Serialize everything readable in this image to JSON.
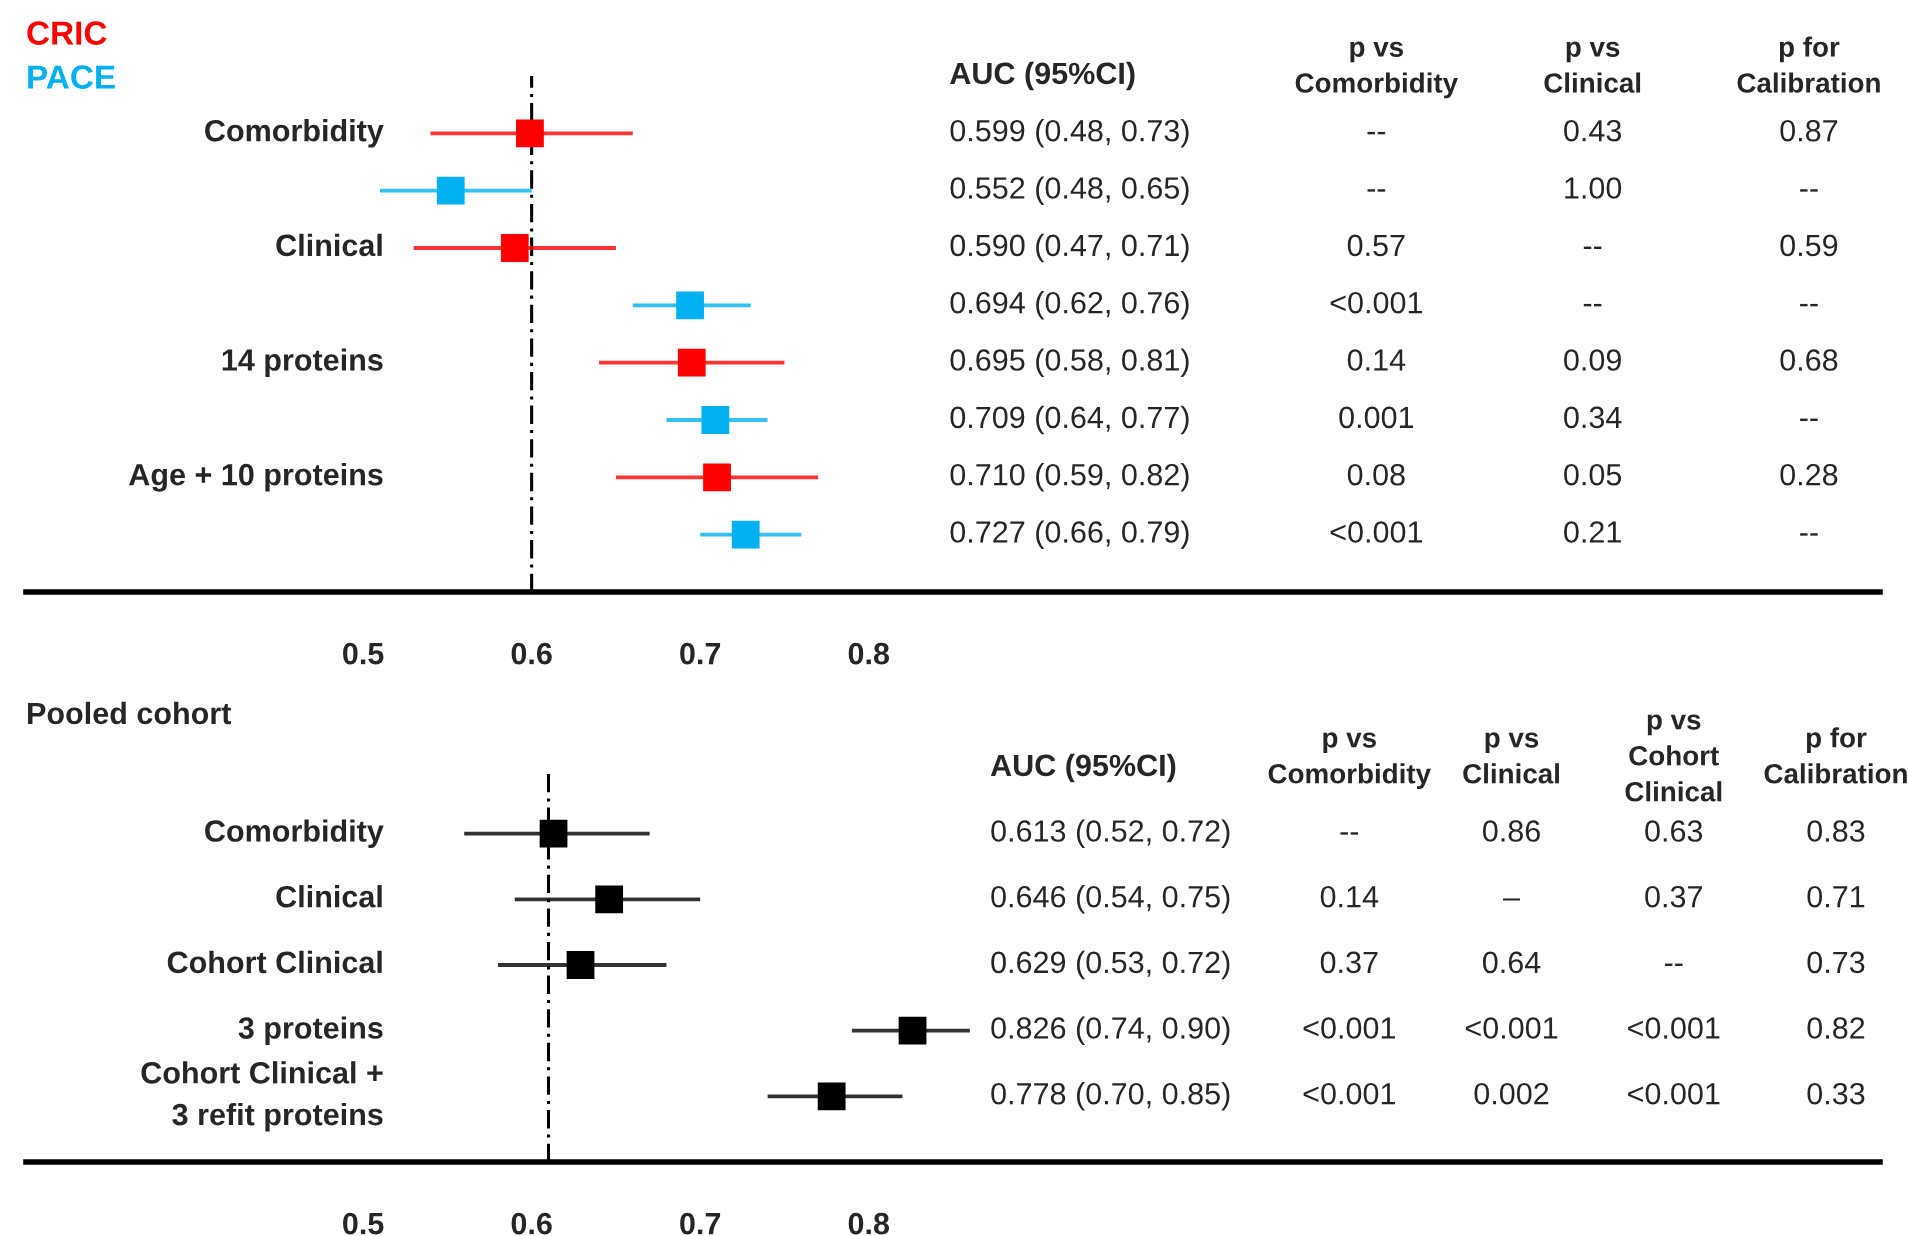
{
  "chart_data": [
    {
      "type": "scatter",
      "orientation": "horizontal",
      "legend": "top left",
      "marker": "square",
      "grid": false,
      "categories": [
        "Comorbidity",
        null,
        "Clinical",
        null,
        "14 proteins",
        null,
        "Age + 10 proteins",
        null
      ],
      "xlim": [
        0.3,
        1.4
      ],
      "xticks": [
        0.5,
        0.6,
        0.7,
        0.8
      ],
      "series": [
        {
          "name": "CRIC",
          "color": "#ff0000",
          "values": [
            0.599,
            null,
            0.59,
            null,
            0.695,
            null,
            0.71,
            null
          ],
          "errors": [
            [
              0.54,
              0.66
            ],
            null,
            [
              0.53,
              0.65
            ],
            null,
            [
              0.64,
              0.75
            ],
            null,
            [
              0.65,
              0.77
            ],
            null
          ]
        },
        {
          "name": "PACE",
          "color": "#00b0f0",
          "values": [
            null,
            0.552,
            null,
            0.694,
            null,
            0.709,
            null,
            0.727
          ],
          "errors": [
            null,
            [
              0.51,
              0.6
            ],
            null,
            [
              0.66,
              0.73
            ],
            null,
            [
              0.68,
              0.74
            ],
            null,
            [
              0.7,
              0.76
            ]
          ]
        }
      ],
      "ref_lines": [
        {
          "axis": "x",
          "value": 0.6,
          "color": "#000000",
          "line_style": "dashed"
        }
      ],
      "annotations": [
        "AUC (95%CI)",
        "p vs\nComorbidity",
        "p vs\nClinical",
        "p for\nCalibration",
        "0.599 (0.48, 0.73)",
        "--",
        "0.43",
        "0.87",
        "0.552 (0.48, 0.65)",
        "--",
        "1.00",
        "--",
        "0.590 (0.47, 0.71)",
        "0.57",
        "--",
        "0.59",
        "0.694 (0.62, 0.76)",
        "<0.001",
        "--",
        "--",
        "0.695 (0.58, 0.81)",
        "0.14",
        "0.09",
        "0.68",
        "0.709 (0.64, 0.77)",
        "0.001",
        "0.34",
        "--",
        "0.710 (0.59, 0.82)",
        "0.08",
        "0.05",
        "0.28",
        "0.727 (0.66, 0.79)",
        "<0.001",
        "0.21",
        "--"
      ]
    },
    {
      "type": "scatter",
      "orientation": "horizontal",
      "marker": "square",
      "grid": false,
      "title": "Pooled cohort",
      "categories": [
        "Comorbidity",
        "Clinical",
        "Cohort Clinical",
        "3 proteins",
        "Cohort Clinical +\n3 refit proteins"
      ],
      "xlim": [
        0.3,
        1.4
      ],
      "xticks": [
        0.5,
        0.6,
        0.7,
        0.8
      ],
      "series": [
        {
          "color": "#000000",
          "values": [
            0.613,
            0.646,
            0.629,
            0.826,
            0.778
          ],
          "errors": [
            [
              0.56,
              0.67
            ],
            [
              0.59,
              0.7
            ],
            [
              0.58,
              0.68
            ],
            [
              0.79,
              0.86
            ],
            [
              0.74,
              0.82
            ]
          ]
        }
      ],
      "ref_lines": [
        {
          "axis": "x",
          "value": 0.61,
          "color": "#000000",
          "line_style": "dashed"
        }
      ],
      "annotations": [
        "AUC (95%CI)",
        "p vs\nComorbidity",
        "p vs\nClinical",
        "p vs\nCohort\nClinical",
        "p for\nCalibration",
        "0.613 (0.52, 0.72)",
        "--",
        "0.86",
        "0.63",
        "0.83",
        "0.646 (0.54, 0.75)",
        "0.14",
        "–",
        "0.37",
        "0.71",
        "0.629 (0.53, 0.72)",
        "0.37",
        "0.64",
        "--",
        "0.73",
        "0.826 (0.74, 0.90)",
        "<0.001",
        "<0.001",
        "<0.001",
        "0.82",
        "0.778 (0.70, 0.85)",
        "<0.001",
        "0.002",
        "<0.001",
        "0.33"
      ]
    }
  ]
}
